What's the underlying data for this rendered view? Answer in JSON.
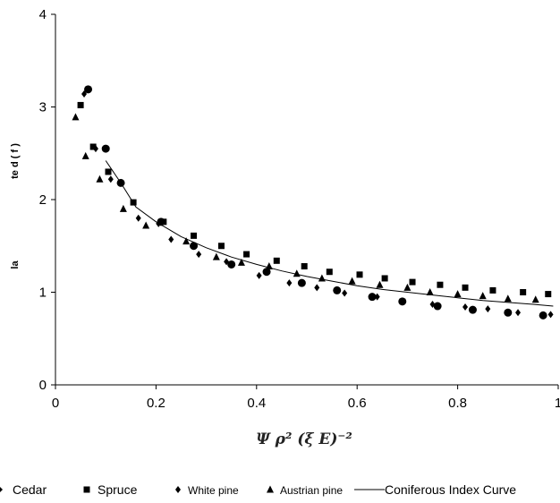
{
  "chart_data": {
    "type": "scatter",
    "xlabel": "Ψ ρ² (ξ Ε)⁻²",
    "ylabel_parts": [
      "la",
      "te d ( f )"
    ],
    "xlim": [
      0,
      1
    ],
    "ylim": [
      0,
      4
    ],
    "x_ticks": [
      "0",
      "0.2",
      "0.4",
      "0.6",
      "0.8",
      "1"
    ],
    "y_ticks": [
      "0",
      "1",
      "2",
      "3",
      "4"
    ],
    "grid": false,
    "legend_position": "bottom",
    "series": [
      {
        "name": "Cedar",
        "marker": "circle",
        "points": [
          [
            0.065,
            3.19
          ],
          [
            0.1,
            2.55
          ],
          [
            0.13,
            2.18
          ],
          [
            0.21,
            1.76
          ],
          [
            0.275,
            1.5
          ],
          [
            0.35,
            1.3
          ],
          [
            0.42,
            1.22
          ],
          [
            0.49,
            1.1
          ],
          [
            0.56,
            1.02
          ],
          [
            0.63,
            0.95
          ],
          [
            0.69,
            0.9
          ],
          [
            0.76,
            0.85
          ],
          [
            0.83,
            0.81
          ],
          [
            0.9,
            0.78
          ],
          [
            0.97,
            0.75
          ]
        ]
      },
      {
        "name": "Spruce",
        "marker": "square",
        "points": [
          [
            0.05,
            3.02
          ],
          [
            0.075,
            2.57
          ],
          [
            0.105,
            2.3
          ],
          [
            0.155,
            1.97
          ],
          [
            0.215,
            1.76
          ],
          [
            0.275,
            1.61
          ],
          [
            0.33,
            1.5
          ],
          [
            0.38,
            1.41
          ],
          [
            0.44,
            1.34
          ],
          [
            0.495,
            1.28
          ],
          [
            0.545,
            1.22
          ],
          [
            0.605,
            1.19
          ],
          [
            0.655,
            1.15
          ],
          [
            0.71,
            1.11
          ],
          [
            0.765,
            1.08
          ],
          [
            0.815,
            1.05
          ],
          [
            0.87,
            1.02
          ],
          [
            0.93,
            1.0
          ],
          [
            0.98,
            0.98
          ]
        ]
      },
      {
        "name": "White pine",
        "marker": "diamond",
        "points": [
          [
            0.057,
            3.14
          ],
          [
            0.08,
            2.55
          ],
          [
            0.11,
            2.22
          ],
          [
            0.165,
            1.8
          ],
          [
            0.205,
            1.74
          ],
          [
            0.23,
            1.57
          ],
          [
            0.285,
            1.41
          ],
          [
            0.34,
            1.33
          ],
          [
            0.405,
            1.18
          ],
          [
            0.465,
            1.1
          ],
          [
            0.52,
            1.05
          ],
          [
            0.575,
            0.99
          ],
          [
            0.64,
            0.95
          ],
          [
            0.75,
            0.87
          ],
          [
            0.815,
            0.84
          ],
          [
            0.86,
            0.82
          ],
          [
            0.92,
            0.78
          ],
          [
            0.985,
            0.76
          ]
        ]
      },
      {
        "name": "Austrian pine",
        "marker": "triangle",
        "points": [
          [
            0.04,
            2.89
          ],
          [
            0.06,
            2.47
          ],
          [
            0.088,
            2.22
          ],
          [
            0.135,
            1.9
          ],
          [
            0.18,
            1.72
          ],
          [
            0.26,
            1.55
          ],
          [
            0.32,
            1.38
          ],
          [
            0.37,
            1.32
          ],
          [
            0.425,
            1.28
          ],
          [
            0.48,
            1.2
          ],
          [
            0.53,
            1.15
          ],
          [
            0.59,
            1.12
          ],
          [
            0.645,
            1.08
          ],
          [
            0.7,
            1.05
          ],
          [
            0.745,
            1.0
          ],
          [
            0.8,
            0.98
          ],
          [
            0.85,
            0.96
          ],
          [
            0.9,
            0.93
          ],
          [
            0.955,
            0.92
          ]
        ]
      },
      {
        "name": "Coniferous Index Curve",
        "marker": "line",
        "points": [
          [
            0.1,
            2.42
          ],
          [
            0.13,
            2.18
          ],
          [
            0.16,
            1.92
          ],
          [
            0.2,
            1.76
          ],
          [
            0.25,
            1.6
          ],
          [
            0.3,
            1.48
          ],
          [
            0.35,
            1.38
          ],
          [
            0.4,
            1.3
          ],
          [
            0.45,
            1.23
          ],
          [
            0.5,
            1.17
          ],
          [
            0.55,
            1.12
          ],
          [
            0.6,
            1.07
          ],
          [
            0.65,
            1.03
          ],
          [
            0.7,
            1.0
          ],
          [
            0.75,
            0.97
          ],
          [
            0.8,
            0.94
          ],
          [
            0.85,
            0.91
          ],
          [
            0.9,
            0.89
          ],
          [
            0.95,
            0.87
          ],
          [
            0.99,
            0.85
          ]
        ]
      }
    ]
  }
}
